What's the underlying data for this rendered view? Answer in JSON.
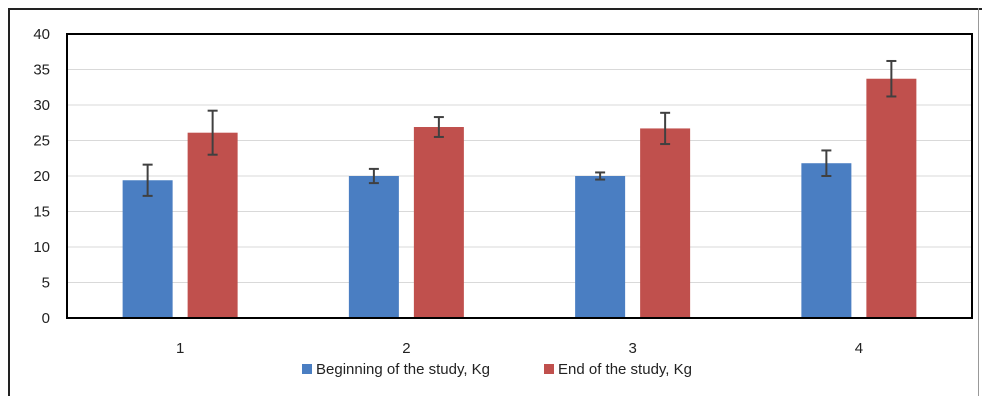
{
  "chart_data": {
    "type": "bar",
    "title": "",
    "xlabel": "",
    "ylabel": "",
    "categories": [
      "1",
      "2",
      "3",
      "4"
    ],
    "ylim": [
      0,
      40
    ],
    "yticks": [
      0,
      5,
      10,
      15,
      20,
      25,
      30,
      35,
      40
    ],
    "grid": true,
    "legend_position": "bottom",
    "series": [
      {
        "name": "Beginning of the study, Kg",
        "color": "#4a7ec2",
        "values": [
          19.4,
          20.0,
          20.0,
          21.8
        ],
        "error": [
          2.2,
          1.0,
          0.5,
          1.8
        ]
      },
      {
        "name": "End of the study, Kg",
        "color": "#c0504d",
        "values": [
          26.1,
          26.9,
          26.7,
          33.7
        ],
        "error": [
          3.1,
          1.4,
          2.2,
          2.5
        ]
      }
    ]
  }
}
